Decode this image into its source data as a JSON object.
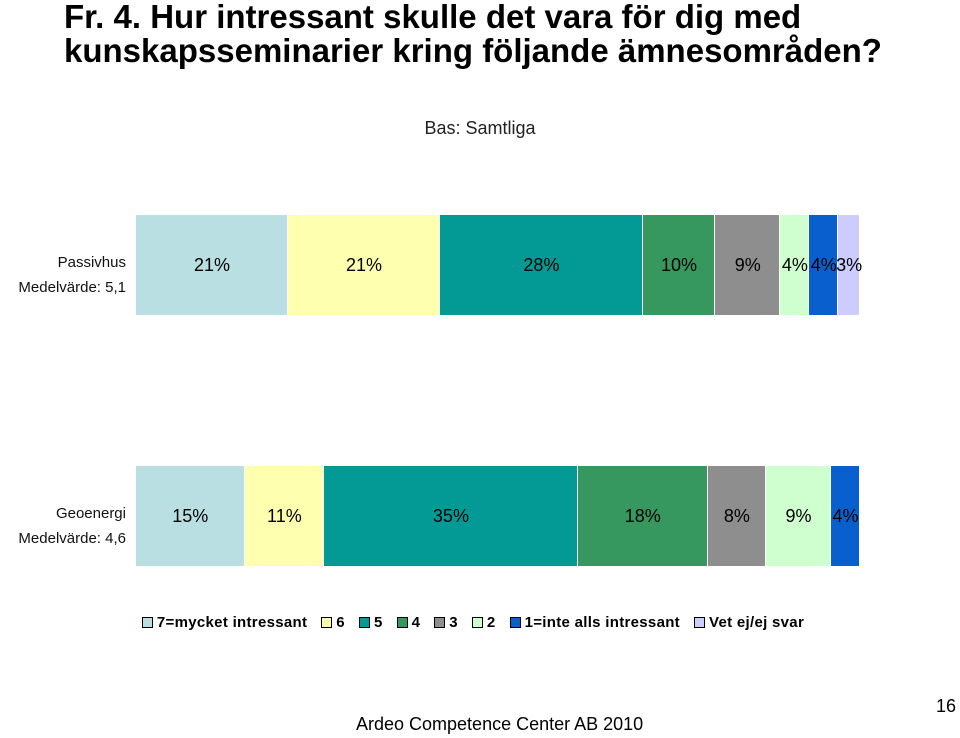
{
  "title": "Fr. 4. Hur intressant skulle det vara för dig med kunskapsseminarier kring följande ämnesområden?",
  "subtitle": "Bas: Samtliga",
  "chart_data": {
    "type": "bar",
    "orientation": "horizontal-stacked-100",
    "categories": [
      "Passivhus",
      "Geoenergi"
    ],
    "means": [
      "Medelvärde: 5,1",
      "Medelvärde: 4,6"
    ],
    "series": [
      {
        "name": "7=mycket intressant",
        "color": "#b9dfe3",
        "values": [
          21,
          15
        ]
      },
      {
        "name": "6",
        "color": "#ffffb0",
        "values": [
          21,
          11
        ]
      },
      {
        "name": "5",
        "color": "#039a96",
        "values": [
          28,
          35
        ]
      },
      {
        "name": "4",
        "color": "#36985e",
        "values": [
          10,
          18
        ]
      },
      {
        "name": "3",
        "color": "#8e8e8e",
        "values": [
          9,
          8
        ]
      },
      {
        "name": "2",
        "color": "#cfffcf",
        "values": [
          4,
          9
        ]
      },
      {
        "name": "1=inte alls intressant",
        "color": "#0a5fce",
        "values": [
          4,
          4
        ]
      },
      {
        "name": "Vet ej/ej svar",
        "color": "#ccccff",
        "values": [
          3,
          0
        ]
      }
    ],
    "value_labels": [
      [
        "21%",
        "21%",
        "28%",
        "10%",
        "9%",
        "4%",
        "4%",
        "3%"
      ],
      [
        "15%",
        "11%",
        "35%",
        "18%",
        "8%",
        "9%",
        "4%",
        ""
      ]
    ],
    "legend_position": "bottom"
  },
  "footer": "Ardeo Competence Center AB 2010",
  "page_number": "16"
}
